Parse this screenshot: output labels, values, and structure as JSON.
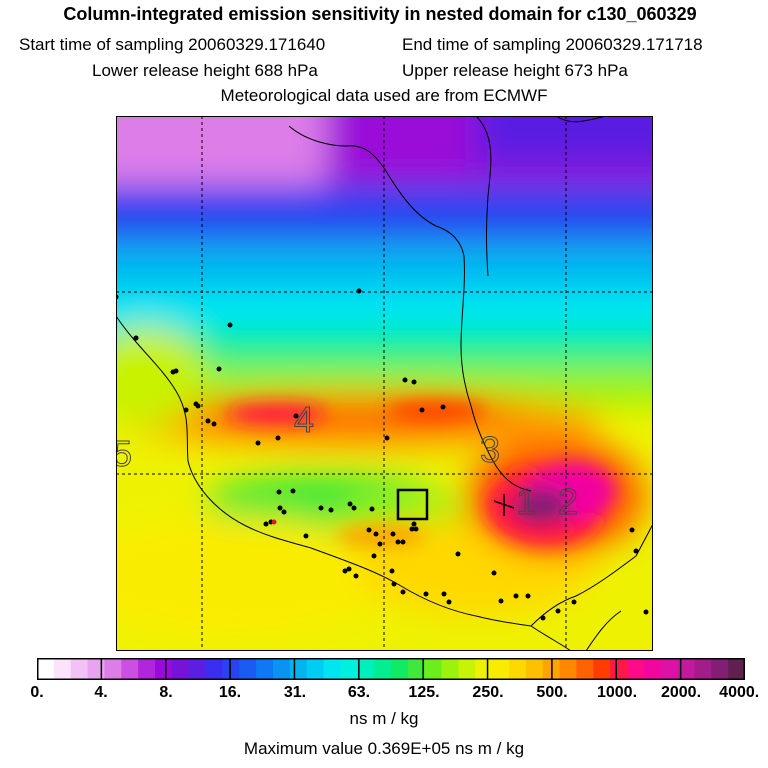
{
  "header": {
    "title": "Column-integrated emission sensitivity in nested domain for c130_060329",
    "start_label": "Start time of sampling 20060329.171640",
    "end_label": "End time of sampling 20060329.171718",
    "lower_label": "Lower release height  688 hPa",
    "upper_label": "Upper release height  673 hPa",
    "met_label": "Meteorological data used are from ECMWF"
  },
  "map": {
    "contour_labels": [
      "5",
      "4",
      "3",
      "1",
      "2"
    ]
  },
  "colorbar": {
    "tick_labels": [
      "0.",
      "4.",
      "8.",
      "16.",
      "31.",
      "63.",
      "125.",
      "250.",
      "500.",
      "1000.",
      "2000.",
      "4000."
    ],
    "colors": [
      "#ffffff",
      "#fbe3fb",
      "#f3c2f5",
      "#eaa3f2",
      "#dd7de8",
      "#cc4ee2",
      "#b325dc",
      "#9a0ad8",
      "#7712d8",
      "#5a1fe2",
      "#3c2ef0",
      "#2844f0",
      "#1a5cf2",
      "#0f78f4",
      "#0a94f2",
      "#04b3f0",
      "#00cdf4",
      "#00e5f2",
      "#00f0e0",
      "#00f0bc",
      "#02ee90",
      "#10ea64",
      "#3fe83a",
      "#6cee1c",
      "#9cf20c",
      "#c8f206",
      "#eef202",
      "#faec00",
      "#ffd800",
      "#ffc000",
      "#ffa400",
      "#ff8800",
      "#ff6200",
      "#ff3d00",
      "#ff1848",
      "#ff0a88",
      "#f206a0",
      "#dd10a8",
      "#c21a9e",
      "#a21c8a",
      "#841e74",
      "#602050"
    ],
    "units": "ns m / kg"
  },
  "footer": {
    "max_value": "Maximum value  0.369E+05 ns m / kg"
  }
}
